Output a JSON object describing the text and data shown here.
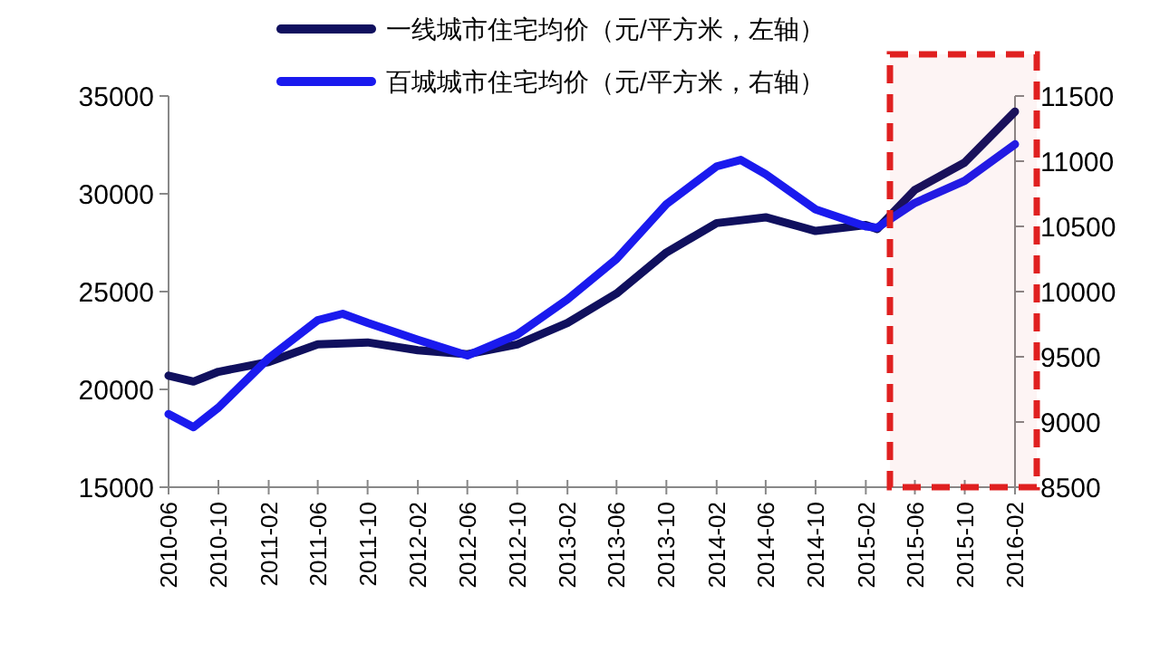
{
  "chart_data": {
    "type": "line",
    "x": [
      "2010-06",
      "2010-08",
      "2010-10",
      "2011-02",
      "2011-06",
      "2011-10",
      "2012-02",
      "2012-06",
      "2012-10",
      "2013-02",
      "2013-06",
      "2013-10",
      "2014-02",
      "2014-06",
      "2014-10",
      "2015-02",
      "2015-03",
      "2015-06",
      "2015-10",
      "2016-02"
    ],
    "series": [
      {
        "name": "一线城市住宅均价（元/平方米，左轴）",
        "color": "#10105e",
        "axis": "y",
        "values": [
          20700,
          20400,
          20900,
          21400,
          22300,
          22400,
          22000,
          21800,
          22300,
          23400,
          24900,
          27000,
          28500,
          28800,
          28100,
          28400,
          28200,
          30200,
          31600,
          34200
        ]
      },
      {
        "name": "百城城市住宅均价（元/平方米，右轴）",
        "color": "#1a1aee",
        "axis": "y2",
        "x": [
          "2010-06",
          "2010-08",
          "2010-10",
          "2011-02",
          "2011-06",
          "2011-08",
          "2011-10",
          "2012-02",
          "2012-06",
          "2012-10",
          "2013-02",
          "2013-06",
          "2013-10",
          "2014-02",
          "2014-04",
          "2014-06",
          "2014-10",
          "2015-02",
          "2015-03",
          "2015-06",
          "2015-10",
          "2016-02"
        ],
        "values": [
          9060,
          8960,
          9110,
          9490,
          9780,
          9830,
          9760,
          9630,
          9510,
          9670,
          9940,
          10250,
          10670,
          10960,
          11010,
          10900,
          10630,
          10500,
          10490,
          10680,
          10850,
          11130
        ]
      }
    ],
    "xlim": [
      "2010-06",
      "2016-02"
    ],
    "xticks": [
      "2010-06",
      "2010-10",
      "2011-02",
      "2011-06",
      "2011-10",
      "2012-02",
      "2012-06",
      "2012-10",
      "2013-02",
      "2013-06",
      "2013-10",
      "2014-02",
      "2014-06",
      "2014-10",
      "2015-02",
      "2015-06",
      "2015-10",
      "2016-02"
    ],
    "ylim": [
      15000,
      35000
    ],
    "yticks": [
      15000,
      20000,
      25000,
      30000,
      35000
    ],
    "y2lim": [
      8500,
      11500
    ],
    "y2ticks": [
      8500,
      9000,
      9500,
      10000,
      10500,
      11000,
      11500
    ],
    "bands": [
      {
        "axis": "x",
        "from": "2015-04",
        "to": "2016-02",
        "color": "#e02020"
      }
    ],
    "grid": false,
    "legend": "top",
    "line_style": "solid"
  }
}
